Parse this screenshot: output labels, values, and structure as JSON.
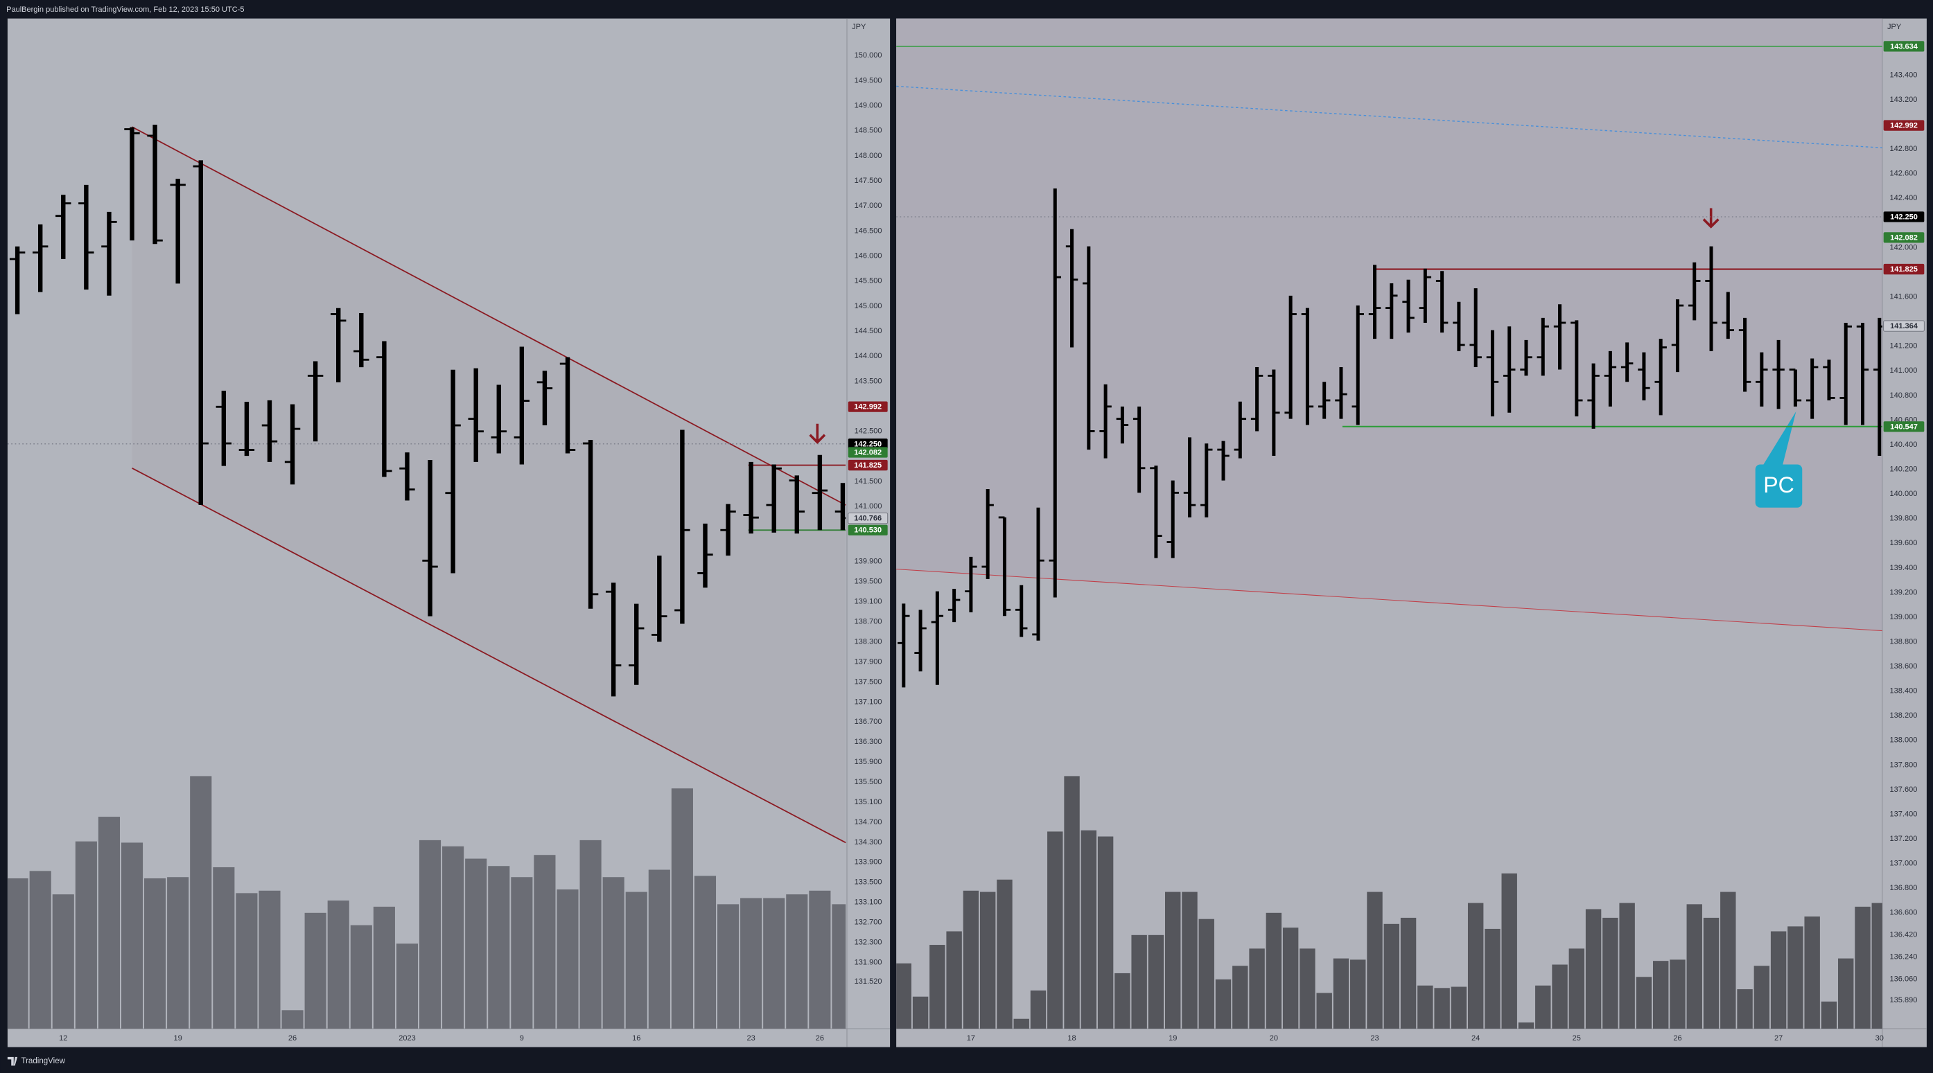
{
  "header": {
    "title": "PaulBergin published on TradingView.com, Feb 12, 2023 15:50 UTC-5"
  },
  "footer": {
    "brand": "TradingView"
  },
  "chart_data": [
    {
      "type": "ohlc",
      "currency": "JPY",
      "categories": [
        null,
        null,
        "12",
        null,
        null,
        null,
        null,
        "19",
        null,
        null,
        null,
        null,
        "26",
        null,
        null,
        null,
        null,
        "2023",
        null,
        null,
        null,
        null,
        "9",
        null,
        null,
        null,
        null,
        "16",
        null,
        null,
        null,
        null,
        "23",
        null,
        null,
        "26",
        null
      ],
      "open": [
        145.94,
        146.07,
        146.8,
        147.05,
        146.19,
        148.53,
        148.4,
        147.42,
        147.79,
        142.99,
        142.13,
        142.62,
        141.89,
        143.61,
        144.84,
        144.1,
        143.98,
        141.76,
        139.92,
        141.27,
        142.75,
        142.38,
        142.38,
        143.48,
        143.85,
        142.26,
        139.3,
        137.83,
        138.44,
        138.93,
        139.67,
        140.53,
        140.83,
        141.03,
        141.52,
        141.27,
        140.9
      ],
      "high": [
        146.19,
        146.63,
        147.22,
        147.42,
        146.88,
        148.57,
        148.62,
        147.54,
        147.91,
        143.31,
        143.09,
        143.12,
        143.04,
        143.9,
        144.96,
        144.86,
        144.3,
        142.08,
        141.93,
        143.73,
        143.76,
        143.43,
        144.19,
        143.71,
        143.98,
        142.33,
        139.48,
        139.06,
        140.02,
        142.53,
        140.66,
        141.05,
        141.89,
        141.84,
        141.62,
        142.03,
        141.47
      ],
      "low": [
        144.84,
        145.28,
        145.94,
        145.33,
        145.21,
        146.31,
        146.24,
        145.45,
        141.03,
        141.81,
        142.01,
        141.89,
        141.44,
        142.3,
        143.48,
        143.78,
        141.59,
        141.12,
        138.81,
        139.67,
        141.89,
        142.06,
        141.84,
        142.62,
        142.06,
        138.96,
        137.21,
        137.44,
        138.3,
        138.66,
        139.38,
        140.02,
        140.46,
        140.48,
        140.46,
        140.53,
        140.53
      ],
      "close": [
        146.07,
        146.19,
        147.05,
        146.07,
        146.68,
        148.45,
        146.31,
        147.42,
        142.26,
        142.26,
        142.13,
        142.3,
        142.55,
        143.61,
        144.71,
        143.93,
        141.71,
        141.34,
        139.8,
        142.62,
        142.5,
        142.5,
        143.11,
        143.36,
        142.13,
        139.25,
        137.83,
        138.57,
        138.81,
        140.53,
        140.04,
        140.9,
        140.78,
        141.76,
        140.9,
        141.32,
        140.77
      ],
      "volume": [
        122,
        128,
        109,
        152,
        172,
        151,
        122,
        123,
        205,
        131,
        110,
        112,
        15,
        94,
        104,
        84,
        99,
        69,
        153,
        148,
        138,
        132,
        123,
        141,
        113,
        153,
        123,
        111,
        129,
        195,
        124,
        101,
        106,
        106,
        109,
        112,
        101
      ],
      "vlim": [
        0,
        220
      ],
      "color": "#000000",
      "volume_color": "#6b6d75",
      "ylim": [
        130.58,
        150.74
      ],
      "yticks": [
        {
          "value": 150,
          "label": "150.000"
        },
        {
          "value": 149.5,
          "label": "149.500"
        },
        {
          "value": 149,
          "label": "149.000"
        },
        {
          "value": 148.5,
          "label": "148.500"
        },
        {
          "value": 148,
          "label": "148.000"
        },
        {
          "value": 147.5,
          "label": "147.500"
        },
        {
          "value": 147,
          "label": "147.000"
        },
        {
          "value": 146.5,
          "label": "146.500"
        },
        {
          "value": 146,
          "label": "146.000"
        },
        {
          "value": 145.5,
          "label": "145.500"
        },
        {
          "value": 145,
          "label": "145.000"
        },
        {
          "value": 144.5,
          "label": "144.500"
        },
        {
          "value": 144,
          "label": "144.000"
        },
        {
          "value": 143.5,
          "label": "143.500"
        },
        {
          "value": 142.5,
          "label": "142.500"
        },
        {
          "value": 141.5,
          "label": "141.500"
        },
        {
          "value": 141,
          "label": "141.000"
        },
        {
          "value": 139.9,
          "label": "139.900"
        },
        {
          "value": 139.5,
          "label": "139.500"
        },
        {
          "value": 139.1,
          "label": "139.100"
        },
        {
          "value": 138.7,
          "label": "138.700"
        },
        {
          "value": 138.3,
          "label": "138.300"
        },
        {
          "value": 137.9,
          "label": "137.900"
        },
        {
          "value": 137.5,
          "label": "137.500"
        },
        {
          "value": 137.1,
          "label": "137.100"
        },
        {
          "value": 136.7,
          "label": "136.700"
        },
        {
          "value": 136.3,
          "label": "136.300"
        },
        {
          "value": 135.9,
          "label": "135.900"
        },
        {
          "value": 135.5,
          "label": "135.500"
        },
        {
          "value": 135.1,
          "label": "135.100"
        },
        {
          "value": 134.7,
          "label": "134.700"
        },
        {
          "value": 134.3,
          "label": "134.300"
        },
        {
          "value": 133.9,
          "label": "133.900"
        },
        {
          "value": 133.5,
          "label": "133.500"
        },
        {
          "value": 133.1,
          "label": "133.100"
        },
        {
          "value": 132.7,
          "label": "132.700"
        },
        {
          "value": 132.3,
          "label": "132.300"
        },
        {
          "value": 131.9,
          "label": "131.900"
        },
        {
          "value": 131.52,
          "label": "131.520"
        }
      ],
      "price_tags": [
        {
          "value": 142.992,
          "label": "142.992",
          "color": "#8b1a22",
          "text_color": "#ffffff"
        },
        {
          "value": 142.25,
          "label": "142.250",
          "color": "#000000",
          "text_color": "#ffffff"
        },
        {
          "value": 142.082,
          "label": "142.082",
          "color": "#2e7d32",
          "text_color": "#ffffff"
        },
        {
          "value": 141.825,
          "label": "141.825",
          "color": "#8b1a22",
          "text_color": "#ffffff"
        },
        {
          "value": 140.766,
          "label": "140.766",
          "color": "#c9cbd2",
          "text_color": "#2a2e39"
        },
        {
          "value": 140.53,
          "label": "140.530",
          "color": "#2e7d32",
          "text_color": "#ffffff"
        }
      ]
    },
    {
      "type": "ohlc",
      "currency": "JPY",
      "categories": [
        null,
        null,
        null,
        null,
        "17",
        null,
        null,
        null,
        null,
        null,
        "18",
        null,
        null,
        null,
        null,
        null,
        "19",
        null,
        null,
        null,
        null,
        null,
        "20",
        null,
        null,
        null,
        null,
        null,
        "23",
        null,
        null,
        null,
        null,
        null,
        "24",
        null,
        null,
        null,
        null,
        null,
        "25",
        null,
        null,
        null,
        null,
        null,
        "26",
        null,
        null,
        null,
        null,
        null,
        "27",
        null,
        null,
        null,
        null,
        null,
        "30"
      ],
      "open": [
        138.79,
        138.71,
        138.96,
        139.06,
        139.21,
        139.41,
        139.81,
        139.06,
        138.86,
        139.46,
        142.01,
        141.71,
        140.51,
        140.61,
        140.61,
        140.21,
        139.61,
        140.01,
        139.91,
        140.36,
        140.36,
        140.61,
        140.96,
        140.66,
        141.46,
        140.71,
        140.76,
        140.71,
        141.46,
        141.51,
        141.56,
        141.51,
        141.73,
        141.39,
        141.21,
        141.11,
        140.96,
        141.01,
        141.11,
        141.36,
        141.39,
        140.76,
        140.96,
        141.03,
        141.01,
        140.91,
        141.21,
        141.53,
        141.73,
        141.39,
        141.33,
        140.91,
        141.01,
        141.01,
        140.76,
        141.03,
        140.78,
        141.36,
        141.01
      ],
      "high": [
        139.11,
        139.06,
        139.21,
        139.23,
        139.49,
        140.04,
        139.81,
        139.26,
        139.89,
        142.48,
        142.15,
        142.01,
        140.89,
        140.71,
        140.71,
        140.23,
        140.11,
        140.46,
        140.41,
        140.43,
        140.75,
        141.03,
        141.01,
        141.61,
        141.51,
        140.91,
        141.03,
        141.53,
        141.86,
        141.71,
        141.74,
        141.83,
        141.81,
        141.56,
        141.67,
        141.33,
        141.36,
        141.25,
        141.43,
        141.54,
        141.41,
        141.06,
        141.16,
        141.23,
        141.15,
        141.26,
        141.58,
        141.88,
        142.01,
        141.64,
        141.43,
        141.15,
        141.25,
        141.01,
        141.1,
        141.09,
        141.39,
        141.39,
        141.43
      ],
      "low": [
        138.43,
        138.56,
        138.45,
        138.96,
        139.04,
        139.31,
        139.01,
        138.84,
        138.81,
        139.16,
        141.19,
        140.36,
        140.29,
        140.41,
        140.01,
        139.48,
        139.48,
        139.81,
        139.81,
        140.11,
        140.29,
        140.51,
        140.31,
        140.61,
        140.56,
        140.61,
        140.61,
        140.56,
        141.26,
        141.26,
        141.31,
        141.39,
        141.31,
        141.16,
        141.03,
        140.63,
        140.66,
        140.96,
        140.96,
        141.01,
        140.63,
        140.53,
        140.71,
        140.91,
        140.76,
        140.64,
        140.99,
        141.41,
        141.16,
        141.26,
        140.83,
        140.71,
        140.69,
        140.71,
        140.61,
        140.76,
        140.56,
        140.56,
        140.31
      ],
      "close": [
        139.01,
        138.91,
        139.01,
        139.14,
        139.41,
        139.91,
        139.06,
        138.91,
        139.46,
        141.76,
        141.74,
        140.51,
        140.71,
        140.56,
        140.21,
        139.66,
        140.01,
        139.91,
        140.36,
        140.31,
        140.61,
        140.96,
        140.66,
        141.46,
        140.71,
        140.76,
        140.81,
        141.46,
        141.51,
        141.61,
        141.43,
        141.76,
        141.39,
        141.21,
        141.11,
        140.91,
        141.01,
        141.11,
        141.36,
        141.39,
        140.76,
        140.96,
        141.03,
        141.06,
        140.86,
        141.19,
        141.53,
        141.73,
        141.39,
        141.33,
        140.91,
        141.01,
        141.01,
        140.76,
        141.03,
        140.78,
        141.36,
        141.01,
        141.36
      ],
      "volume": [
        53,
        26,
        68,
        79,
        112,
        111,
        121,
        8,
        31,
        160,
        205,
        161,
        156,
        45,
        76,
        76,
        111,
        111,
        89,
        40,
        51,
        65,
        94,
        82,
        65,
        29,
        57,
        56,
        111,
        85,
        90,
        35,
        33,
        34,
        102,
        81,
        126,
        5,
        35,
        52,
        65,
        97,
        90,
        102,
        42,
        55,
        56,
        101,
        90,
        111,
        32,
        51,
        79,
        83,
        91,
        22,
        57,
        99,
        102
      ],
      "vlim": [
        0,
        220
      ],
      "color": "#000000",
      "volume_color": "#55565c",
      "ylim": [
        135.66,
        143.86
      ],
      "yticks": [
        {
          "value": 143.4,
          "label": "143.400"
        },
        {
          "value": 143.2,
          "label": "143.200"
        },
        {
          "value": 142.8,
          "label": "142.800"
        },
        {
          "value": 142.6,
          "label": "142.600"
        },
        {
          "value": 142.4,
          "label": "142.400"
        },
        {
          "value": 142,
          "label": "142.000"
        },
        {
          "value": 141.6,
          "label": "141.600"
        },
        {
          "value": 141.2,
          "label": "141.200"
        },
        {
          "value": 141,
          "label": "141.000"
        },
        {
          "value": 140.8,
          "label": "140.800"
        },
        {
          "value": 140.6,
          "label": "140.600"
        },
        {
          "value": 140.4,
          "label": "140.400"
        },
        {
          "value": 140.2,
          "label": "140.200"
        },
        {
          "value": 140,
          "label": "140.000"
        },
        {
          "value": 139.8,
          "label": "139.800"
        },
        {
          "value": 139.6,
          "label": "139.600"
        },
        {
          "value": 139.4,
          "label": "139.400"
        },
        {
          "value": 139.2,
          "label": "139.200"
        },
        {
          "value": 139,
          "label": "139.000"
        },
        {
          "value": 138.8,
          "label": "138.800"
        },
        {
          "value": 138.6,
          "label": "138.600"
        },
        {
          "value": 138.4,
          "label": "138.400"
        },
        {
          "value": 138.2,
          "label": "138.200"
        },
        {
          "value": 138,
          "label": "138.000"
        },
        {
          "value": 137.8,
          "label": "137.800"
        },
        {
          "value": 137.6,
          "label": "137.600"
        },
        {
          "value": 137.4,
          "label": "137.400"
        },
        {
          "value": 137.2,
          "label": "137.200"
        },
        {
          "value": 137,
          "label": "137.000"
        },
        {
          "value": 136.8,
          "label": "136.800"
        },
        {
          "value": 136.6,
          "label": "136.600"
        },
        {
          "value": 136.42,
          "label": "136.420"
        },
        {
          "value": 136.24,
          "label": "136.240"
        },
        {
          "value": 136.06,
          "label": "136.060"
        },
        {
          "value": 135.89,
          "label": "135.890"
        }
      ],
      "price_tags": [
        {
          "value": 143.634,
          "label": "143.634",
          "color": "#2e7d32",
          "text_color": "#ffffff"
        },
        {
          "value": 142.992,
          "label": "142.992",
          "color": "#8b1a22",
          "text_color": "#ffffff"
        },
        {
          "value": 142.25,
          "label": "142.250",
          "color": "#000000",
          "text_color": "#ffffff"
        },
        {
          "value": 142.082,
          "label": "142.082",
          "color": "#2e7d32",
          "text_color": "#ffffff"
        },
        {
          "value": 141.825,
          "label": "141.825",
          "color": "#8b1a22",
          "text_color": "#ffffff"
        },
        {
          "value": 141.364,
          "label": "141.364",
          "color": "#c9cbd2",
          "text_color": "#2a2e39"
        },
        {
          "value": 140.547,
          "label": "140.547",
          "color": "#2e7d32",
          "text_color": "#ffffff"
        }
      ],
      "annotation": "PC"
    }
  ]
}
